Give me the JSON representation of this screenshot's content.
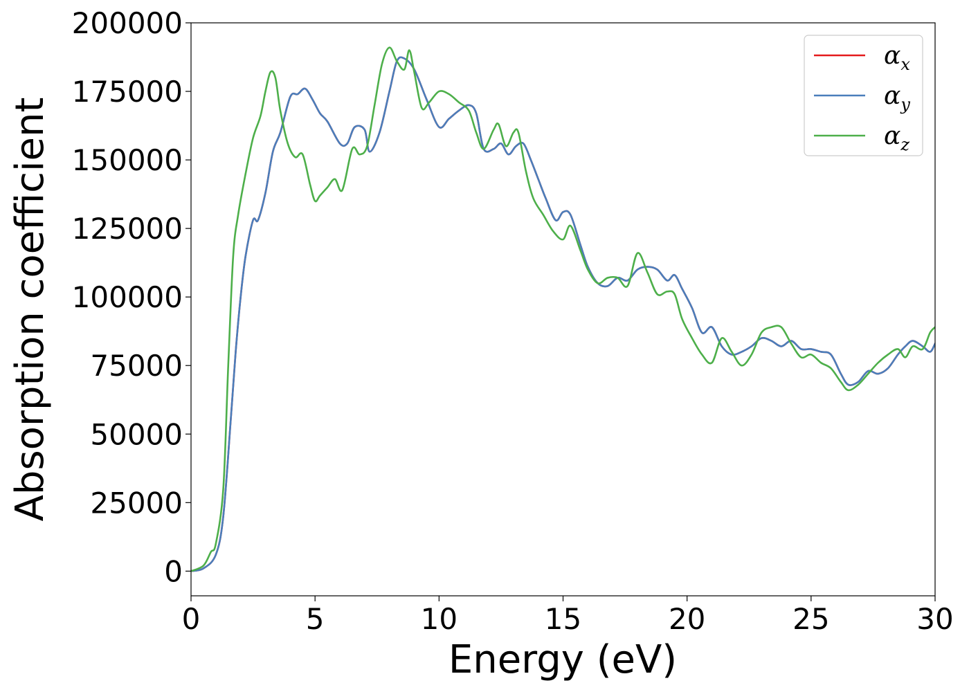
{
  "chart_data": {
    "type": "line",
    "xlabel": "Energy (eV)",
    "ylabel": "Absorption coefficient",
    "xlim": [
      0,
      30
    ],
    "ylim": [
      -9000,
      200000
    ],
    "xticks": [
      0,
      5,
      10,
      15,
      20,
      25,
      30
    ],
    "yticks": [
      0,
      25000,
      50000,
      75000,
      100000,
      125000,
      150000,
      175000,
      200000
    ],
    "grid": false,
    "legend_placement": "top-right",
    "series": [
      {
        "name": "α",
        "subscript": "x",
        "color": "#e41a1c",
        "x": [
          0,
          0.5,
          1.0,
          1.3,
          1.6,
          1.8,
          2.0,
          2.2,
          2.5,
          2.7,
          3.0,
          3.3,
          3.6,
          4.0,
          4.3,
          4.6,
          4.9,
          5.2,
          5.5,
          6.0,
          6.3,
          6.6,
          7.0,
          7.2,
          7.6,
          8.0,
          8.3,
          8.6,
          9.0,
          9.5,
          10.0,
          10.4,
          10.8,
          11.2,
          11.5,
          11.8,
          12.2,
          12.5,
          12.8,
          13.1,
          13.4,
          13.7,
          14.0,
          14.3,
          14.7,
          15.0,
          15.3,
          15.7,
          16.0,
          16.4,
          16.8,
          17.2,
          17.6,
          18.0,
          18.4,
          18.8,
          19.2,
          19.5,
          19.8,
          20.2,
          20.6,
          21.0,
          21.4,
          21.8,
          22.2,
          22.6,
          23.0,
          23.4,
          23.8,
          24.2,
          24.6,
          25.0,
          25.4,
          25.8,
          26.2,
          26.5,
          26.9,
          27.3,
          27.7,
          28.1,
          28.5,
          28.8,
          29.1,
          29.5,
          29.8,
          30.0
        ],
        "y": [
          0,
          1000,
          6000,
          20000,
          55000,
          80000,
          100000,
          115000,
          128000,
          128000,
          138000,
          153000,
          160000,
          173000,
          174000,
          176000,
          172000,
          167000,
          164000,
          156000,
          156000,
          162000,
          161000,
          153000,
          160000,
          175000,
          186000,
          187000,
          183000,
          172000,
          162000,
          165000,
          168000,
          170000,
          167000,
          154000,
          154000,
          156000,
          152000,
          155000,
          156000,
          150000,
          143000,
          136000,
          128000,
          131000,
          130000,
          119000,
          111000,
          105000,
          104000,
          107000,
          106000,
          110000,
          111000,
          110000,
          106000,
          108000,
          103000,
          96000,
          87000,
          89000,
          82000,
          79000,
          80000,
          82000,
          85000,
          84000,
          82000,
          84000,
          81000,
          81000,
          80000,
          79000,
          72000,
          68000,
          69000,
          73000,
          72000,
          74000,
          79000,
          82000,
          84000,
          82000,
          80000,
          83000
        ]
      },
      {
        "name": "α",
        "subscript": "y",
        "color": "#4a7ebb",
        "x": [
          0,
          0.5,
          1.0,
          1.3,
          1.6,
          1.8,
          2.0,
          2.2,
          2.5,
          2.7,
          3.0,
          3.3,
          3.6,
          4.0,
          4.3,
          4.6,
          4.9,
          5.2,
          5.5,
          6.0,
          6.3,
          6.6,
          7.0,
          7.2,
          7.6,
          8.0,
          8.3,
          8.6,
          9.0,
          9.5,
          10.0,
          10.4,
          10.8,
          11.2,
          11.5,
          11.8,
          12.2,
          12.5,
          12.8,
          13.1,
          13.4,
          13.7,
          14.0,
          14.3,
          14.7,
          15.0,
          15.3,
          15.7,
          16.0,
          16.4,
          16.8,
          17.2,
          17.6,
          18.0,
          18.4,
          18.8,
          19.2,
          19.5,
          19.8,
          20.2,
          20.6,
          21.0,
          21.4,
          21.8,
          22.2,
          22.6,
          23.0,
          23.4,
          23.8,
          24.2,
          24.6,
          25.0,
          25.4,
          25.8,
          26.2,
          26.5,
          26.9,
          27.3,
          27.7,
          28.1,
          28.5,
          28.8,
          29.1,
          29.5,
          29.8,
          30.0
        ],
        "y": [
          0,
          1000,
          6000,
          20000,
          55000,
          80000,
          100000,
          115000,
          128000,
          128000,
          138000,
          153000,
          160000,
          173000,
          174000,
          176000,
          172000,
          167000,
          164000,
          156000,
          156000,
          162000,
          161000,
          153000,
          160000,
          175000,
          186000,
          187000,
          183000,
          172000,
          162000,
          165000,
          168000,
          170000,
          167000,
          154000,
          154000,
          156000,
          152000,
          155000,
          156000,
          150000,
          143000,
          136000,
          128000,
          131000,
          130000,
          119000,
          111000,
          105000,
          104000,
          107000,
          106000,
          110000,
          111000,
          110000,
          106000,
          108000,
          103000,
          96000,
          87000,
          89000,
          82000,
          79000,
          80000,
          82000,
          85000,
          84000,
          82000,
          84000,
          81000,
          81000,
          80000,
          79000,
          72000,
          68000,
          69000,
          73000,
          72000,
          74000,
          79000,
          82000,
          84000,
          82000,
          80000,
          83000
        ]
      },
      {
        "name": "α",
        "subscript": "z",
        "color": "#4daf4a",
        "x": [
          0,
          0.5,
          0.8,
          1.0,
          1.3,
          1.5,
          1.7,
          1.9,
          2.2,
          2.5,
          2.8,
          3.0,
          3.2,
          3.4,
          3.6,
          3.9,
          4.2,
          4.5,
          4.8,
          5.0,
          5.2,
          5.5,
          5.8,
          6.1,
          6.5,
          6.8,
          7.1,
          7.4,
          7.7,
          8.0,
          8.3,
          8.6,
          8.8,
          9.0,
          9.3,
          9.6,
          10.0,
          10.4,
          10.8,
          11.2,
          11.5,
          11.8,
          12.2,
          12.4,
          12.7,
          13.0,
          13.2,
          13.5,
          13.8,
          14.2,
          14.6,
          15.0,
          15.3,
          15.7,
          16.0,
          16.4,
          16.8,
          17.2,
          17.6,
          18.0,
          18.4,
          18.8,
          19.2,
          19.5,
          19.8,
          20.2,
          20.6,
          21.0,
          21.4,
          21.8,
          22.2,
          22.6,
          23.0,
          23.4,
          23.8,
          24.2,
          24.6,
          25.0,
          25.4,
          25.8,
          26.2,
          26.5,
          26.9,
          27.3,
          27.7,
          28.1,
          28.5,
          28.8,
          29.1,
          29.5,
          29.8,
          30.0
        ],
        "y": [
          0,
          2000,
          7000,
          10000,
          30000,
          75000,
          115000,
          130000,
          145000,
          158000,
          166000,
          175000,
          182000,
          180000,
          168000,
          156000,
          151000,
          152000,
          141000,
          135000,
          137000,
          140000,
          143000,
          139000,
          154000,
          152000,
          155000,
          170000,
          185000,
          191000,
          186000,
          183000,
          190000,
          182000,
          169000,
          171000,
          175000,
          174000,
          171000,
          168000,
          160000,
          154000,
          161000,
          163000,
          155000,
          160000,
          160000,
          146000,
          136000,
          130000,
          124000,
          121000,
          126000,
          117000,
          110000,
          105000,
          107000,
          107000,
          104000,
          116000,
          109000,
          101000,
          102000,
          101000,
          92000,
          85000,
          79000,
          76000,
          85000,
          80000,
          75000,
          79000,
          87000,
          89000,
          89000,
          83000,
          78000,
          79000,
          76000,
          74000,
          69000,
          66000,
          68000,
          72000,
          76000,
          79000,
          81000,
          78000,
          82000,
          81000,
          87000,
          89000
        ]
      }
    ]
  }
}
